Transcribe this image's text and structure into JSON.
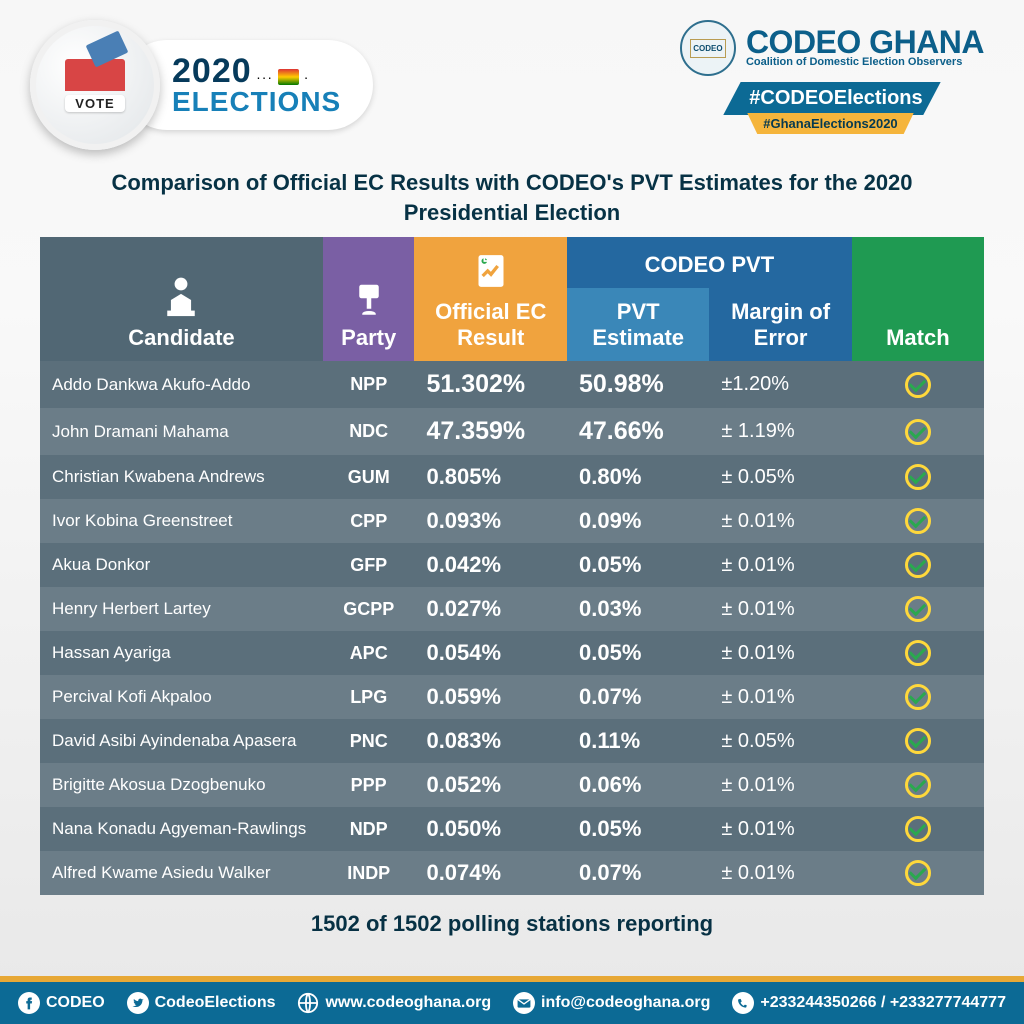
{
  "header": {
    "left": {
      "vote_label": "VOTE",
      "year": "2020",
      "word": "ELECTIONS"
    },
    "right": {
      "org_name": "CODEO GHANA",
      "org_tag": "Coalition of Domestic Election Observers",
      "seal_text": "CODEO",
      "hashtag_main": "#CODEOElections",
      "hashtag_sub": "#GhanaElections2020"
    }
  },
  "title": "Comparison of Official EC Results with CODEO's PVT Estimates for the 2020 Presidential Election",
  "columns": {
    "candidate": "Candidate",
    "party": "Party",
    "ec": "Official EC Result",
    "pvt_group": "CODEO PVT",
    "pvt": "PVT Estimate",
    "moe": "Margin of Error",
    "match": "Match"
  },
  "column_colors": {
    "candidate": "#516774",
    "party": "#7a5fa4",
    "ec": "#f0a33e",
    "pvt_group": "#2468a0",
    "pvt": "#3a87b8",
    "moe": "#2468a0",
    "match": "#1f9a52"
  },
  "row_colors": {
    "odd": "#5b6f7b",
    "even": "#6b7d88"
  },
  "value_colors": {
    "ec": "#ffbb3b",
    "pvt": "#8fcfe6",
    "moe": "#c7cfd4"
  },
  "rows": [
    {
      "candidate": "Addo Dankwa Akufo-Addo",
      "party": "NPP",
      "ec": "51.302%",
      "pvt": "50.98%",
      "moe": "±1.20%",
      "match": true
    },
    {
      "candidate": "John Dramani Mahama",
      "party": "NDC",
      "ec": "47.359%",
      "pvt": "47.66%",
      "moe": "± 1.19%",
      "match": true
    },
    {
      "candidate": "Christian Kwabena Andrews",
      "party": "GUM",
      "ec": "0.805%",
      "pvt": "0.80%",
      "moe": "± 0.05%",
      "match": true
    },
    {
      "candidate": "Ivor Kobina Greenstreet",
      "party": "CPP",
      "ec": "0.093%",
      "pvt": "0.09%",
      "moe": "± 0.01%",
      "match": true
    },
    {
      "candidate": "Akua Donkor",
      "party": "GFP",
      "ec": "0.042%",
      "pvt": "0.05%",
      "moe": "± 0.01%",
      "match": true
    },
    {
      "candidate": "Henry Herbert Lartey",
      "party": "GCPP",
      "ec": "0.027%",
      "pvt": "0.03%",
      "moe": "± 0.01%",
      "match": true
    },
    {
      "candidate": "Hassan Ayariga",
      "party": "APC",
      "ec": "0.054%",
      "pvt": "0.05%",
      "moe": "± 0.01%",
      "match": true
    },
    {
      "candidate": "Percival Kofi Akpaloo",
      "party": "LPG",
      "ec": "0.059%",
      "pvt": "0.07%",
      "moe": "± 0.01%",
      "match": true
    },
    {
      "candidate": "David Asibi Ayindenaba Apasera",
      "party": "PNC",
      "ec": "0.083%",
      "pvt": "0.11%",
      "moe": "± 0.05%",
      "match": true
    },
    {
      "candidate": "Brigitte Akosua Dzogbenuko",
      "party": "PPP",
      "ec": "0.052%",
      "pvt": "0.06%",
      "moe": "± 0.01%",
      "match": true
    },
    {
      "candidate": "Nana Konadu Agyeman-Rawlings",
      "party": "NDP",
      "ec": "0.050%",
      "pvt": "0.05%",
      "moe": "± 0.01%",
      "match": true
    },
    {
      "candidate": "Alfred Kwame Asiedu Walker",
      "party": "INDP",
      "ec": "0.074%",
      "pvt": "0.07%",
      "moe": "± 0.01%",
      "match": true
    }
  ],
  "footer_note": "1502 of 1502  polling  stations reporting",
  "contacts": {
    "facebook": "CODEO",
    "twitter": "CodeoElections",
    "website": "www.codeoghana.org",
    "email": "info@codeoghana.org",
    "phone": "+233244350266 / +233277744777"
  },
  "footer_colors": {
    "gold": "#e7a836",
    "blue": "#0c6a95"
  }
}
